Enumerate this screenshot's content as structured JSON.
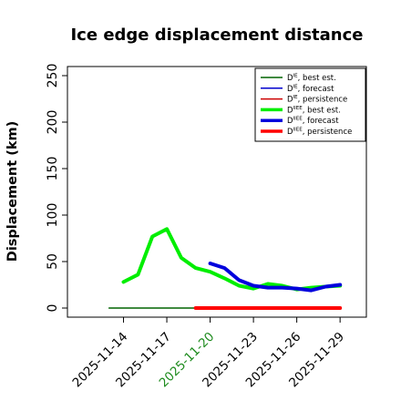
{
  "chart_data": {
    "type": "line",
    "title": "Ice edge displacement distance",
    "xlabel": "",
    "ylabel": "Displacement (km)",
    "ylim": [
      0,
      260
    ],
    "yticks": [
      0,
      50,
      100,
      150,
      200,
      250
    ],
    "xlim": [
      "2025-11-11",
      "2025-11-30"
    ],
    "xticks": [
      "2025-11-14",
      "2025-11-17",
      "2025-11-20",
      "2025-11-23",
      "2025-11-26",
      "2025-11-29"
    ],
    "highlight_tick": "2025-11-20",
    "highlight_color": "#1e8b1e",
    "grid": false,
    "legend_position": "top-right",
    "series": [
      {
        "name": "D^IE, best est.",
        "base": "D",
        "sup": "IE",
        "suffix": ", best est.",
        "color": "#006400",
        "width": 1.5,
        "x": [
          "2025-11-13",
          "2025-11-19"
        ],
        "y": [
          0,
          0
        ]
      },
      {
        "name": "D^IE, forecast",
        "base": "D",
        "sup": "IE",
        "suffix": ", forecast",
        "color": "#0000cd",
        "width": 1.5,
        "x": [],
        "y": []
      },
      {
        "name": "D^IE, persistence",
        "base": "D",
        "sup": "IE",
        "suffix": ", persistence",
        "color": "#cc0000",
        "width": 1.5,
        "x": [
          "2025-11-19",
          "2025-11-29"
        ],
        "y": [
          0,
          0
        ]
      },
      {
        "name": "D^IIEE, best est.",
        "base": "D",
        "sup": "IIEE",
        "suffix": ", best est.",
        "color": "#00ee00",
        "width": 4,
        "x": [
          "2025-11-14",
          "2025-11-15",
          "2025-11-16",
          "2025-11-17",
          "2025-11-18",
          "2025-11-19",
          "2025-11-20",
          "2025-11-21",
          "2025-11-22",
          "2025-11-23",
          "2025-11-24",
          "2025-11-25",
          "2025-11-26",
          "2025-11-27",
          "2025-11-28",
          "2025-11-29"
        ],
        "y": [
          28,
          36,
          77,
          85,
          54,
          43,
          39,
          32,
          24,
          21,
          26,
          24,
          20,
          22,
          23,
          24
        ]
      },
      {
        "name": "D^IIEE, forecast",
        "base": "D",
        "sup": "IIEE",
        "suffix": ", forecast",
        "color": "#0000dd",
        "width": 4,
        "x": [
          "2025-11-20",
          "2025-11-21",
          "2025-11-22",
          "2025-11-23",
          "2025-11-24",
          "2025-11-25",
          "2025-11-26",
          "2025-11-27",
          "2025-11-28",
          "2025-11-29"
        ],
        "y": [
          48,
          43,
          30,
          24,
          22,
          22,
          21,
          19,
          23,
          25
        ]
      },
      {
        "name": "D^IIEE, persistence",
        "base": "D",
        "sup": "IIEE",
        "suffix": ", persistence",
        "color": "#ff0000",
        "width": 4,
        "x": [
          "2025-11-19",
          "2025-11-29"
        ],
        "y": [
          0,
          0
        ]
      }
    ]
  }
}
